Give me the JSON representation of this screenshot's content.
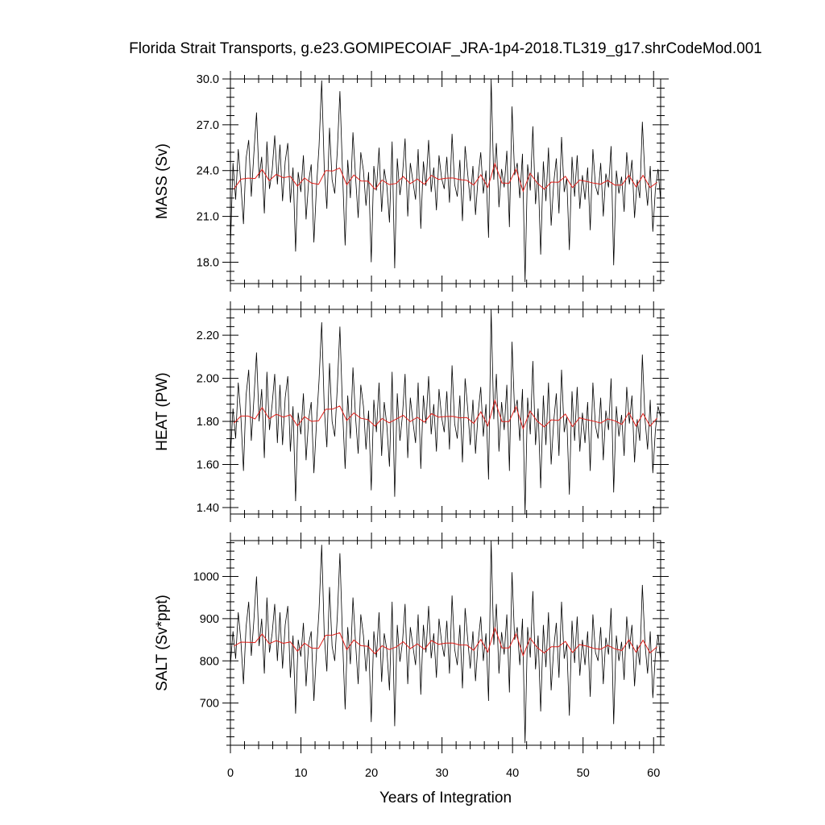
{
  "chart_data": {
    "type": "line",
    "title": "Florida Strait Transports, g.e23.GOMIPECOIAF_JRA-1p4-2018.TL319_g17.shrCodeMod.001",
    "xlabel": "Years of Integration",
    "xlim": [
      0,
      61
    ],
    "x_ticks": [
      "0",
      "10",
      "20",
      "30",
      "40",
      "50",
      "60"
    ],
    "series_styles": {
      "monthly": "#000000",
      "annual_mean": "#e0201b"
    },
    "panels": [
      {
        "name": "mass",
        "ylabel": "MASS (Sv)",
        "ylim": [
          16.6,
          30.0
        ],
        "y_ticks": [
          "18.0",
          "21.0",
          "24.0",
          "27.0",
          "30.0"
        ],
        "monthly_samples": [
          19.0,
          24.5,
          22.1,
          25.4,
          23.2,
          20.5,
          24.8,
          26.0,
          22.3,
          25.1,
          27.8,
          23.5,
          24.9,
          21.2,
          25.9,
          22.8,
          24.0,
          26.3,
          23.1,
          25.7,
          22.0,
          24.6,
          25.8,
          21.9,
          24.2,
          18.7,
          23.9,
          22.6,
          25.0,
          20.8,
          23.3,
          24.4,
          19.3,
          22.9,
          25.6,
          29.9,
          24.1,
          21.5,
          26.8,
          23.4,
          22.5,
          25.3,
          29.2,
          23.8,
          19.1,
          24.7,
          22.2,
          26.5,
          23.6,
          20.9,
          25.2,
          24.0,
          21.7,
          23.9,
          18.0,
          24.3,
          22.7,
          25.5,
          21.3,
          24.1,
          23.0,
          20.6,
          25.9,
          17.6,
          24.8,
          22.4,
          23.7,
          26.1,
          21.0,
          24.5,
          23.3,
          22.1,
          25.4,
          20.2,
          24.6,
          23.0,
          26.0,
          22.6,
          24.2,
          21.4,
          25.0,
          23.5,
          22.8,
          24.9,
          21.9,
          26.4,
          23.1,
          22.3,
          24.7,
          20.7,
          25.6,
          23.8,
          22.0,
          24.3,
          21.1,
          23.6,
          25.2,
          22.5,
          24.0,
          19.6,
          30.3,
          23.4,
          25.8,
          21.6,
          24.1,
          22.9,
          25.3,
          20.3,
          28.2,
          23.7,
          24.5,
          22.2,
          25.1,
          16.7,
          24.4,
          22.7,
          26.9,
          21.8,
          23.9,
          18.5,
          24.6,
          22.0,
          25.5,
          20.4,
          23.2,
          24.8,
          21.2,
          26.2,
          22.6,
          23.5,
          18.8,
          24.9,
          22.3,
          25.0,
          21.5,
          23.7,
          22.1,
          24.2,
          20.1,
          25.4,
          23.0,
          22.4,
          24.5,
          21.0,
          23.8,
          22.9,
          25.6,
          17.8,
          24.0,
          22.5,
          23.6,
          21.3,
          25.2,
          23.1,
          24.7,
          20.9,
          23.4,
          22.2,
          27.2,
          23.5,
          21.7,
          24.3,
          20.0,
          22.8,
          24.1,
          22.0
        ]
      },
      {
        "name": "heat",
        "ylabel": "HEAT (PW)",
        "ylim": [
          1.37,
          2.32
        ],
        "y_ticks": [
          "1.40",
          "1.60",
          "1.80",
          "2.00",
          "2.20"
        ],
        "monthly_samples": [
          1.64,
          1.86,
          1.72,
          1.98,
          1.83,
          1.57,
          1.92,
          2.04,
          1.71,
          1.9,
          2.12,
          1.8,
          1.95,
          1.63,
          2.03,
          1.76,
          1.88,
          2.02,
          1.7,
          1.97,
          1.69,
          1.91,
          2.01,
          1.66,
          1.87,
          1.43,
          1.84,
          1.74,
          1.93,
          1.62,
          1.81,
          1.89,
          1.56,
          1.79,
          1.99,
          2.26,
          1.86,
          1.68,
          2.07,
          1.8,
          1.73,
          1.96,
          2.24,
          1.85,
          1.58,
          1.92,
          1.72,
          2.05,
          1.82,
          1.65,
          1.97,
          1.87,
          1.67,
          1.85,
          1.48,
          1.9,
          1.75,
          1.98,
          1.64,
          1.89,
          1.78,
          1.59,
          2.03,
          1.45,
          1.93,
          1.71,
          1.83,
          2.02,
          1.63,
          1.91,
          1.8,
          1.7,
          1.98,
          1.58,
          1.92,
          1.79,
          2.01,
          1.74,
          1.88,
          1.66,
          1.95,
          1.82,
          1.75,
          1.94,
          1.67,
          2.06,
          1.79,
          1.72,
          1.92,
          1.61,
          2.0,
          1.86,
          1.69,
          1.9,
          1.65,
          1.84,
          1.96,
          1.73,
          1.88,
          1.53,
          2.33,
          1.81,
          2.02,
          1.66,
          1.89,
          1.76,
          1.97,
          1.57,
          2.17,
          1.84,
          1.9,
          1.71,
          1.95,
          1.37,
          1.91,
          1.74,
          2.08,
          1.69,
          1.86,
          1.49,
          1.92,
          1.69,
          1.98,
          1.6,
          1.8,
          1.93,
          1.64,
          2.04,
          1.75,
          1.82,
          1.46,
          1.94,
          1.71,
          1.96,
          1.66,
          1.84,
          1.7,
          1.89,
          1.57,
          1.98,
          1.78,
          1.72,
          1.91,
          1.62,
          1.85,
          1.76,
          2.0,
          1.47,
          1.87,
          1.73,
          1.83,
          1.64,
          1.96,
          1.79,
          1.92,
          1.61,
          1.81,
          1.71,
          2.11,
          1.81,
          1.67,
          1.9,
          1.56,
          1.76,
          1.87,
          1.82
        ]
      },
      {
        "name": "salt",
        "ylabel": "SALT (Sv*ppt)",
        "ylim": [
          600,
          1085
        ],
        "y_ticks": [
          "700",
          "800",
          "900",
          "1000"
        ],
        "monthly_samples": [
          790,
          870,
          805,
          915,
          850,
          745,
          880,
          940,
          812,
          895,
          1000,
          835,
          900,
          770,
          950,
          820,
          865,
          935,
          800,
          915,
          782,
          885,
          930,
          760,
          860,
          675,
          850,
          810,
          890,
          740,
          840,
          870,
          705,
          820,
          920,
          1075,
          860,
          775,
          975,
          835,
          800,
          905,
          1055,
          850,
          685,
          880,
          792,
          950,
          843,
          745,
          910,
          860,
          775,
          850,
          655,
          870,
          808,
          915,
          750,
          865,
          825,
          730,
          940,
          645,
          885,
          798,
          845,
          935,
          745,
          880,
          835,
          790,
          910,
          720,
          885,
          820,
          930,
          806,
          865,
          760,
          900,
          845,
          810,
          895,
          770,
          955,
          828,
          790,
          885,
          735,
          925,
          852,
          782,
          870,
          752,
          845,
          905,
          800,
          865,
          705,
          1085,
          838,
          935,
          770,
          868,
          815,
          910,
          725,
          1010,
          850,
          880,
          790,
          900,
          605,
          880,
          808,
          965,
          780,
          860,
          680,
          885,
          785,
          915,
          730,
          830,
          890,
          760,
          940,
          805,
          840,
          670,
          895,
          795,
          905,
          765,
          850,
          790,
          870,
          715,
          910,
          820,
          800,
          880,
          745,
          855,
          815,
          925,
          650,
          860,
          800,
          845,
          755,
          905,
          828,
          885,
          740,
          838,
          790,
          980,
          840,
          770,
          870,
          712,
          815,
          862,
          800
        ]
      }
    ]
  }
}
